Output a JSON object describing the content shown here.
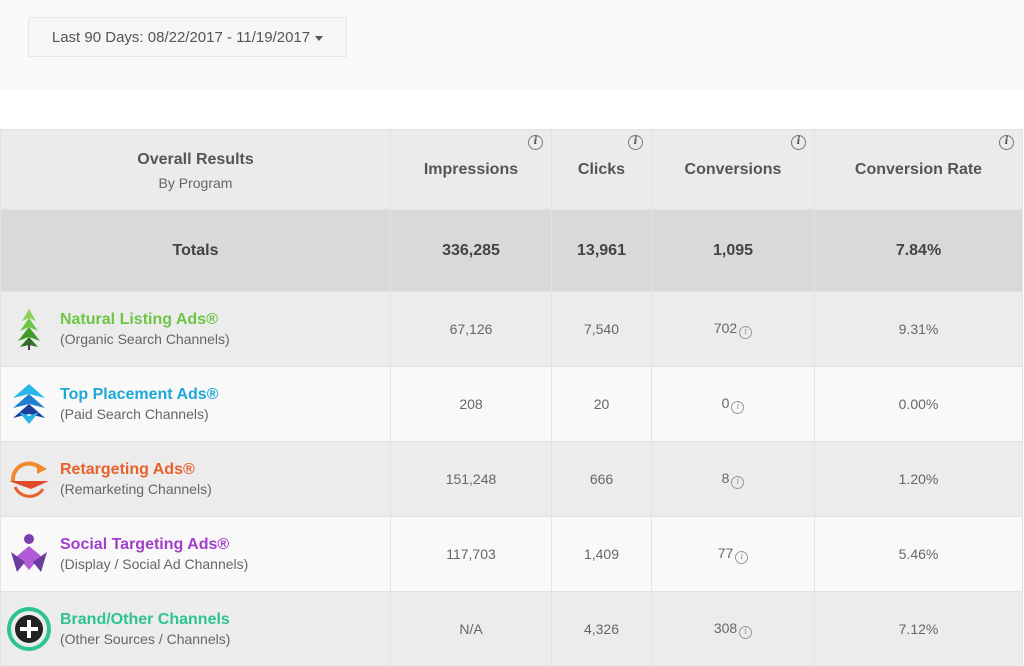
{
  "date_range": {
    "label": "Last 90 Days: 08/22/2017 - 11/19/2017"
  },
  "table": {
    "header": {
      "title": "Overall Results",
      "subtitle": "By Program",
      "columns": [
        "Impressions",
        "Clicks",
        "Conversions",
        "Conversion Rate"
      ]
    },
    "totals": {
      "label": "Totals",
      "impressions": "336,285",
      "clicks": "13,961",
      "conversions": "1,095",
      "conversion_rate": "7.84%"
    },
    "rows": [
      {
        "name": "Natural Listing Ads®",
        "sub": "(Organic Search Channels)",
        "color": "#6cc644",
        "icon": "leaf-logo-icon",
        "impressions": "67,126",
        "clicks": "7,540",
        "conversions": "702",
        "conversion_rate": "9.31%"
      },
      {
        "name": "Top Placement Ads®",
        "sub": "(Paid Search Channels)",
        "color": "#1fa7d6",
        "icon": "arrow-up-logo-icon",
        "impressions": "208",
        "clicks": "20",
        "conversions": "0",
        "conversion_rate": "0.00%"
      },
      {
        "name": "Retargeting Ads®",
        "sub": "(Remarketing Channels)",
        "color": "#e8602c",
        "icon": "retarget-arrow-logo-icon",
        "impressions": "151,248",
        "clicks": "666",
        "conversions": "8",
        "conversion_rate": "1.20%"
      },
      {
        "name": "Social Targeting Ads®",
        "sub": "(Display / Social Ad Channels)",
        "color": "#a03fc9",
        "icon": "social-people-logo-icon",
        "impressions": "117,703",
        "clicks": "1,409",
        "conversions": "77",
        "conversion_rate": "5.46%"
      },
      {
        "name": "Brand/Other Channels",
        "sub": "(Other Sources / Channels)",
        "color": "#2ec48f",
        "icon": "plus-circle-logo-icon",
        "impressions": "N/A",
        "clicks": "4,326",
        "conversions": "308",
        "conversion_rate": "7.12%"
      }
    ],
    "info_glyph": "i"
  }
}
